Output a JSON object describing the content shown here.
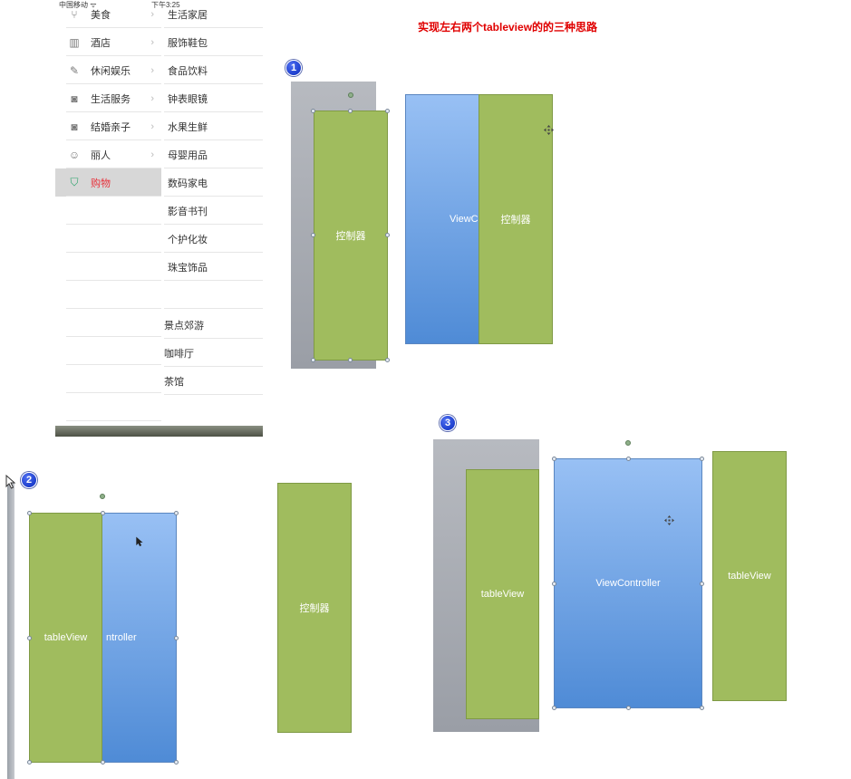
{
  "title": "实现左右两个tableview的的三种思路",
  "phone": {
    "status": {
      "carrier": "中国移动 ᯤ",
      "time": "下午3:25"
    },
    "categories": [
      {
        "label": "美食",
        "icon": "fork-knife-icon",
        "glyph": "⑂"
      },
      {
        "label": "酒店",
        "icon": "building-icon",
        "glyph": "▥"
      },
      {
        "label": "休闲娱乐",
        "icon": "microphone-icon",
        "glyph": "✎"
      },
      {
        "label": "生活服务",
        "icon": "camera-icon",
        "glyph": "◙"
      },
      {
        "label": "结婚亲子",
        "icon": "camera-icon",
        "glyph": "◙"
      },
      {
        "label": "丽人",
        "icon": "face-icon",
        "glyph": "☺"
      },
      {
        "label": "购物",
        "icon": "shopping-bag-icon",
        "glyph": "⛉"
      }
    ],
    "selected_index": 6,
    "subcategories": [
      "生活家居",
      "服饰鞋包",
      "食品饮料",
      "钟表眼镜",
      "水果生鲜",
      "母婴用品",
      "数码家电",
      "影音书刊",
      "个护化妆",
      "珠宝饰品"
    ],
    "subcategories_lower": [
      "景点郊游",
      "咖啡厅",
      "茶馆"
    ]
  },
  "diagram1": {
    "badge": "1",
    "left_box_label": "控制器",
    "overlap_blue_label": "ViewCo",
    "overlap_green_label": "控制器"
  },
  "diagram2": {
    "badge": "2",
    "green_label": "tableView",
    "blue_label": "ntroller",
    "separate_label": "控制器"
  },
  "diagram3": {
    "badge": "3",
    "left_label": "tableView",
    "center_label": "ViewController",
    "right_label": "tableView"
  },
  "colors": {
    "title": "#e00000",
    "green": "#a0bc5e",
    "blue_top": "#98c0f4",
    "blue_bottom": "#4f8bd6",
    "selected_text": "#e8323c"
  }
}
